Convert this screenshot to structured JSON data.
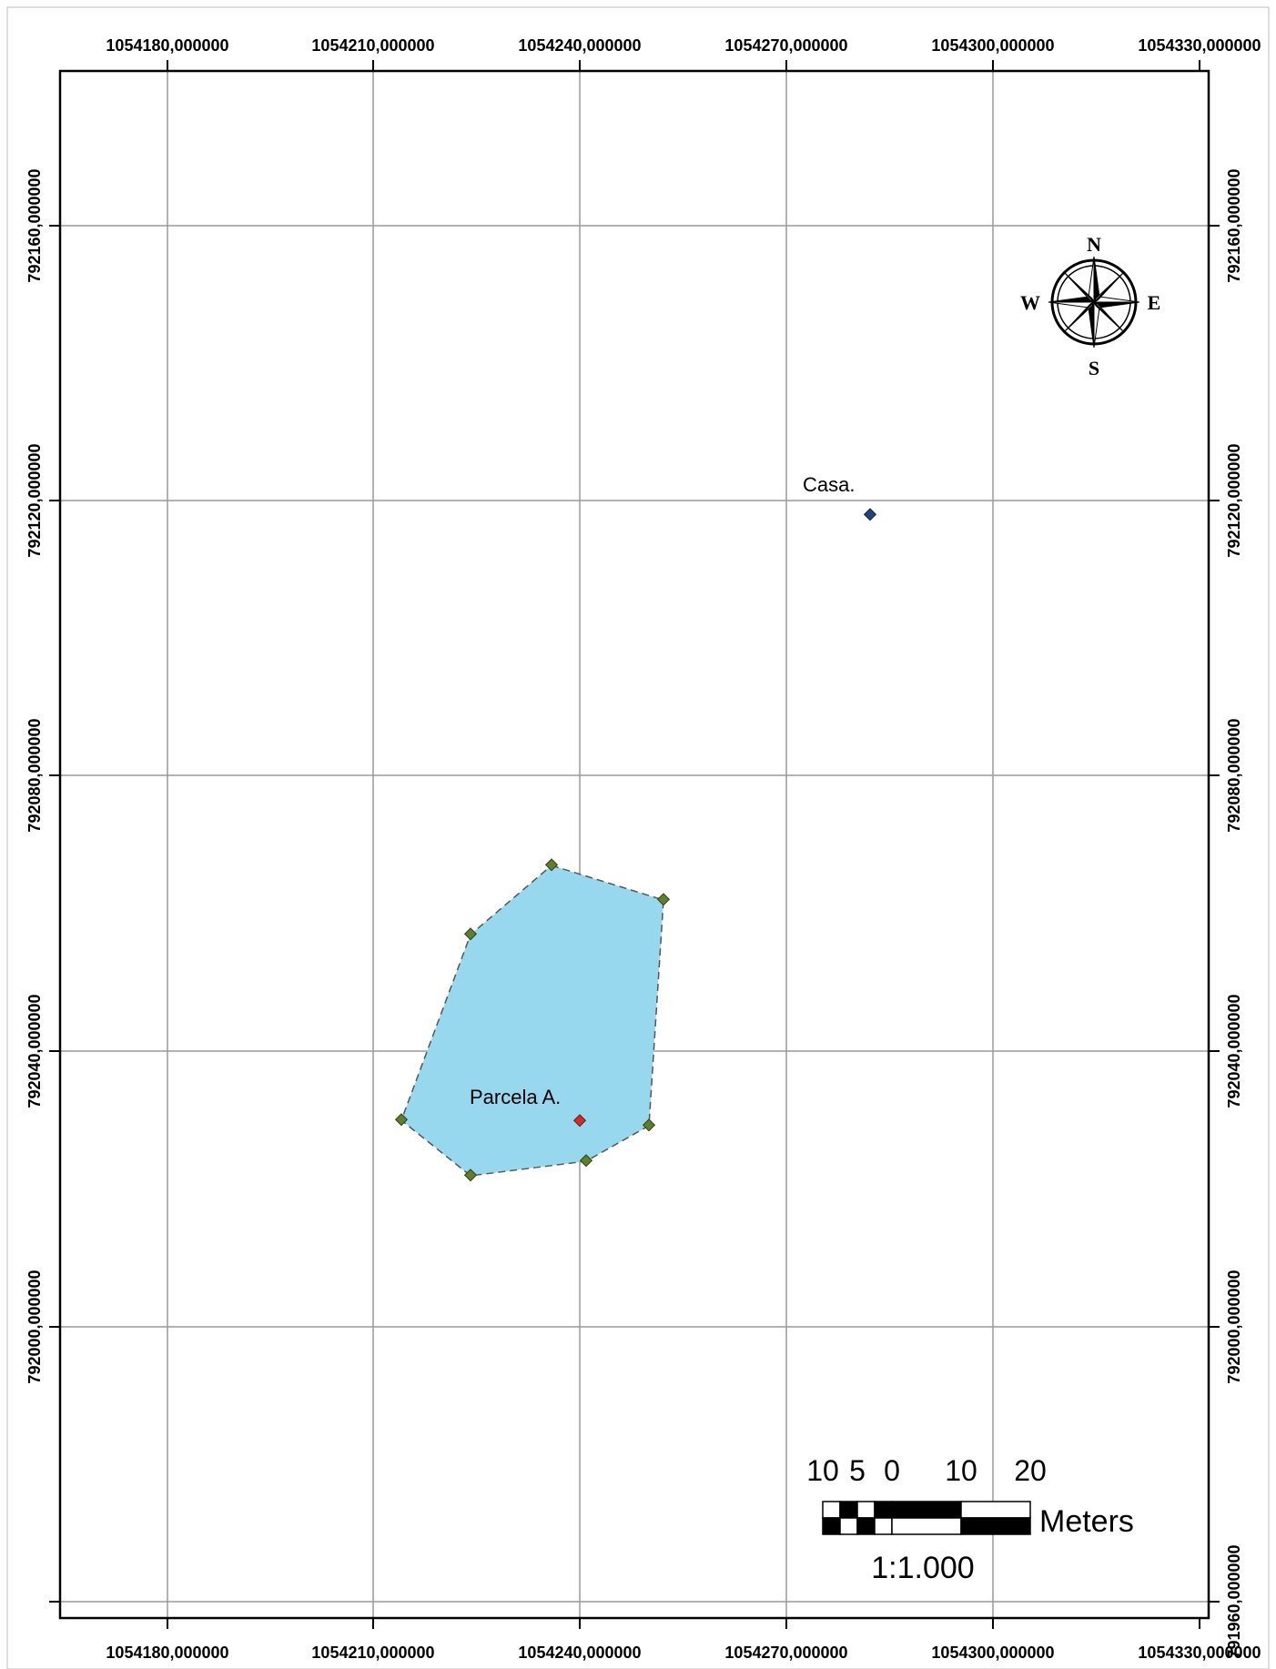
{
  "map": {
    "x_ticks": [
      "1054180,000000",
      "1054210,000000",
      "1054240,000000",
      "1054270,000000",
      "1054300,000000",
      "1054330,000000"
    ],
    "y_ticks": [
      "792160,000000",
      "792120,000000",
      "792080,000000",
      "792040,000000",
      "792000,000000",
      "791960,000000"
    ],
    "features": {
      "casa_label": "Casa.",
      "parcela_label": "Parcela A."
    },
    "colors": {
      "parcel_fill": "#97d8ef",
      "vertex": "#5f7f2f",
      "casa_point": "#24457a",
      "parcel_centroid": "#c8302a",
      "grid": "#9a9a9a"
    },
    "north_arrow": {
      "n": "N",
      "s": "S",
      "e": "E",
      "w": "W"
    },
    "scale_bar": {
      "labels": [
        "10",
        "5",
        "0",
        "10",
        "20"
      ],
      "unit": "Meters",
      "ratio": "1:1.000"
    }
  }
}
